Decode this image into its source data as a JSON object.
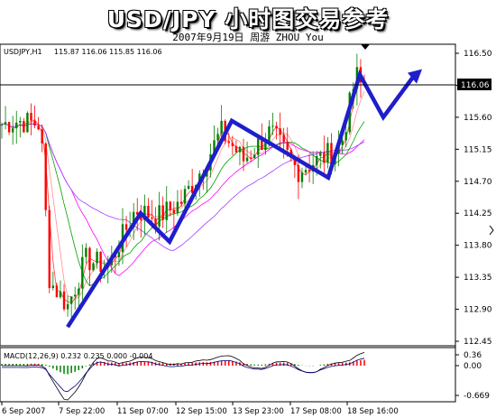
{
  "header": {
    "title": "USD/JPY 小时图交易参考",
    "subtitle": "2007年9月19日     周游 ZHOU You"
  },
  "chart_data": {
    "type": "candlestick",
    "symbol_label": "USDJPY,H1",
    "ohlc_label": "115.87 116.06 115.85 116.06",
    "price_axis_ticks": [
      "116.50",
      "116.05",
      "115.60",
      "115.15",
      "114.70",
      "114.25",
      "113.80",
      "113.35",
      "112.90",
      "112.45"
    ],
    "current_price": "116.06",
    "macd_label": "MACD(12,26,9) 0.232 0.235 0.000 -0.004",
    "macd_axis_ticks": [
      "0.36",
      "0.00",
      "-0.669"
    ],
    "time_labels": [
      "6 Sep 2007",
      "7 Sep 22:00",
      "11 Sep 07:00",
      "12 Sep 15:00",
      "13 Sep 23:00",
      "17 Sep 08:00",
      "18 Sep 16:00"
    ],
    "forecast_path_prices": [
      112.65,
      114.25,
      113.85,
      115.55,
      114.75,
      116.2,
      115.6,
      116.2
    ],
    "colors": {
      "up": "#008000",
      "down": "#ff0000",
      "forecast": "#1e1ecc",
      "macd_signal": "#000080"
    }
  }
}
